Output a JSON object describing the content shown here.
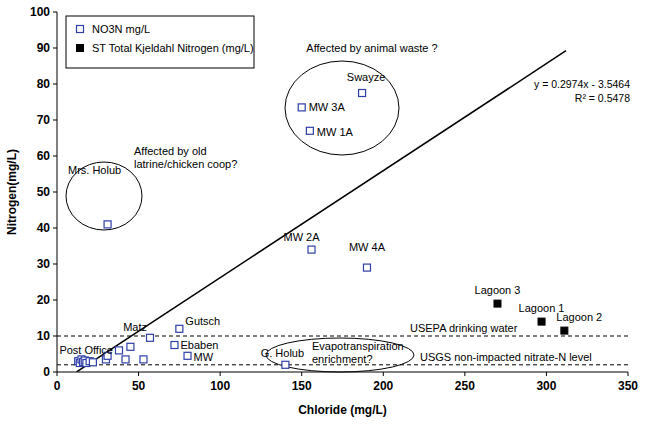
{
  "chart_data": {
    "type": "scatter",
    "x_label": "Chloride (mg/L)",
    "y_label": "Nitrogen(mg/L)",
    "xlim": [
      0,
      350
    ],
    "xticks": [
      0,
      50,
      100,
      150,
      200,
      250,
      300,
      350
    ],
    "ylim": [
      0,
      100
    ],
    "yticks": [
      0,
      10,
      20,
      30,
      40,
      50,
      60,
      70,
      80,
      90,
      100
    ],
    "grid": false,
    "legend": "top-left",
    "series": [
      {
        "name": "NO3N mg/L",
        "color": "#2e3fa8",
        "marker": "square-open",
        "x": [
          13,
          14,
          15,
          16,
          17,
          18,
          20,
          22,
          30,
          31,
          38,
          42,
          45,
          57,
          72,
          75,
          53,
          80,
          31,
          150,
          155,
          187,
          156,
          190,
          140
        ],
        "values": [
          3,
          2.5,
          3.5,
          2.8,
          3.2,
          2.5,
          3,
          2.7,
          3.5,
          4.5,
          6,
          3.5,
          7,
          9.5,
          7.5,
          12,
          3.5,
          4.5,
          41,
          73.5,
          67,
          77.5,
          34,
          29,
          2
        ],
        "labels": [
          null,
          null,
          null,
          null,
          null,
          null,
          null,
          null,
          null,
          null,
          "Post Office",
          null,
          null,
          "Matz",
          "Ebaben",
          "Gutsch",
          null,
          "MW",
          "Mrs. Holub",
          "MW 3A",
          "MW 1A",
          "Swayze",
          "MW 2A",
          "MW 4A",
          "G. Holub"
        ]
      },
      {
        "name": "ST Total Kjeldahl Nitrogen (mg/L)",
        "color": "#000000",
        "marker": "square-filled",
        "x": [
          270,
          297,
          311
        ],
        "values": [
          19,
          14,
          11.5
        ],
        "labels": [
          "Lagoon 3",
          "Lagoon 1",
          "Lagoon 2"
        ]
      }
    ],
    "trendline": {
      "slope": 0.2974,
      "intercept": -3.5464,
      "x": [
        12,
        312
      ],
      "label": "y = 0.2974x - 3.5464",
      "r2_label": "R² = 0.5478"
    },
    "reference_lines": [
      {
        "value": 10,
        "label": "USEPA drinking water"
      },
      {
        "value": 2,
        "label": "USGS non-impacted nitrate-N level"
      }
    ],
    "annotations": [
      "Affected by animal waste ?",
      "Affected by old\nlatrine/chicken coop?",
      "Evapotranspiration\nenrichment?"
    ]
  }
}
